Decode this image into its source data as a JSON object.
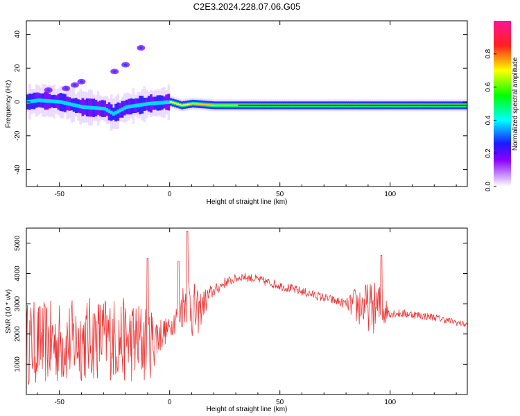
{
  "title": "C2E3.2024.228.07.06.G05",
  "chart_data": [
    {
      "type": "heatmap",
      "xlabel": "Height of straight line (km)",
      "ylabel": "Frequency (Hz)",
      "xlim": [
        -65,
        135
      ],
      "ylim": [
        -50,
        48
      ],
      "xticks": [
        -50,
        0,
        50,
        100
      ],
      "yticks": [
        -40,
        -20,
        0,
        20,
        40
      ],
      "colorbar": {
        "label": "Normalized spectral amplitude",
        "range": [
          0,
          1
        ],
        "ticks": [
          "0.0",
          "0.2",
          "0.4",
          "0.6",
          "0.8"
        ],
        "colors": [
          "#ffffff",
          "#8a00ff",
          "#1a1aff",
          "#00ffff",
          "#00ff00",
          "#ffff00",
          "#ff0000",
          "#ff1493"
        ]
      },
      "ridge": {
        "description_points": [
          [
            -65,
            0
          ],
          [
            -60,
            1
          ],
          [
            -50,
            0
          ],
          [
            -40,
            -3
          ],
          [
            -30,
            -4
          ],
          [
            -26,
            -7
          ],
          [
            -20,
            -3
          ],
          [
            -10,
            -1
          ],
          [
            0,
            0
          ],
          [
            5,
            -2
          ],
          [
            10,
            -1
          ],
          [
            20,
            -2
          ],
          [
            135,
            -2
          ]
        ]
      },
      "scatter_blobs": [
        [
          -47,
          8
        ],
        [
          -43,
          10
        ],
        [
          -40,
          12
        ],
        [
          -25,
          18
        ],
        [
          -20,
          22
        ],
        [
          -13,
          32
        ],
        [
          -55,
          7
        ],
        [
          -60,
          4
        ]
      ]
    },
    {
      "type": "line",
      "xlabel": "Height of straight line (km)",
      "ylabel": "SNR (10 * v/v)",
      "xlim": [
        -65,
        135
      ],
      "ylim": [
        0,
        5500
      ],
      "xticks": [
        -50,
        0,
        50,
        100
      ],
      "yticks": [
        1000,
        2000,
        3000,
        4000,
        5000
      ],
      "line_color": "#ee3333",
      "trend": {
        "x": [
          -65,
          -50,
          -40,
          -30,
          -20,
          -10,
          0,
          5,
          8,
          12,
          18,
          25,
          33,
          40,
          50,
          60,
          70,
          80,
          90,
          97,
          100,
          110,
          120,
          135
        ],
        "y": [
          1700,
          1700,
          1800,
          1900,
          1800,
          1700,
          2200,
          2800,
          3300,
          2600,
          3300,
          3700,
          3900,
          3800,
          3600,
          3400,
          3200,
          3000,
          2900,
          2800,
          2700,
          2650,
          2550,
          2300
        ]
      },
      "amplitude": {
        "x": [
          -65,
          -10,
          -5,
          0,
          10,
          15,
          20,
          30,
          80,
          85,
          95,
          100,
          135
        ],
        "y": [
          1400,
          1400,
          700,
          300,
          1100,
          500,
          200,
          150,
          150,
          700,
          900,
          150,
          100
        ]
      },
      "peaks": [
        [
          8,
          5400
        ],
        [
          4,
          4400
        ],
        [
          -10,
          4500
        ],
        [
          96,
          4600
        ]
      ]
    }
  ]
}
